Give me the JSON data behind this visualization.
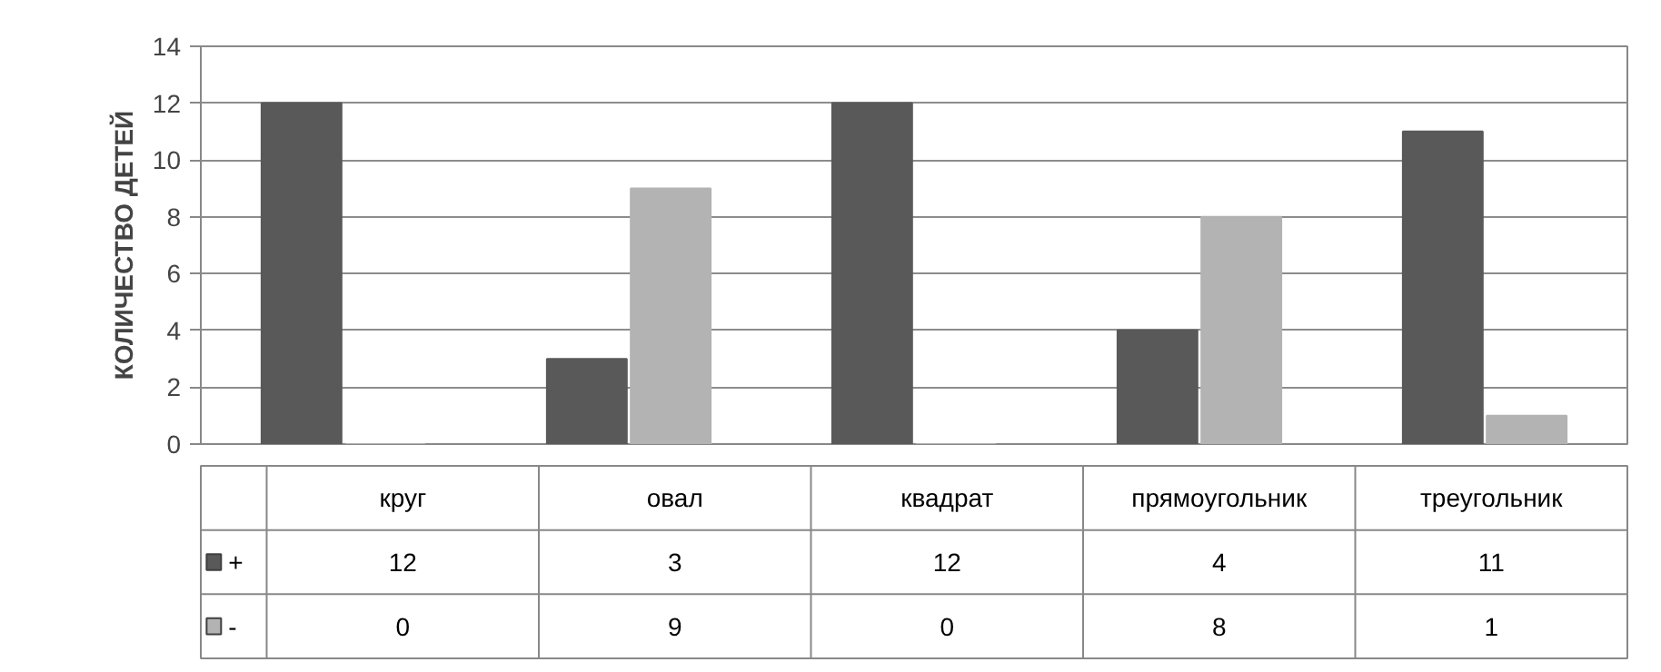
{
  "chart_data": {
    "type": "bar",
    "ylabel": "КОЛИЧЕСТВО ДЕТЕЙ",
    "categories": [
      "круг",
      "овал",
      "квадрат",
      "прямоугольник",
      "треугольник"
    ],
    "series": [
      {
        "name": "+",
        "color": "#595959",
        "values": [
          12,
          3,
          12,
          4,
          11
        ]
      },
      {
        "name": "-",
        "color": "#b3b3b3",
        "values": [
          0,
          9,
          0,
          8,
          1
        ]
      }
    ],
    "ylim": [
      0,
      14
    ],
    "yticks": [
      0,
      2,
      4,
      6,
      8,
      10,
      12,
      14
    ],
    "grid": "y",
    "data_labels": true,
    "legend": "bottom left"
  }
}
